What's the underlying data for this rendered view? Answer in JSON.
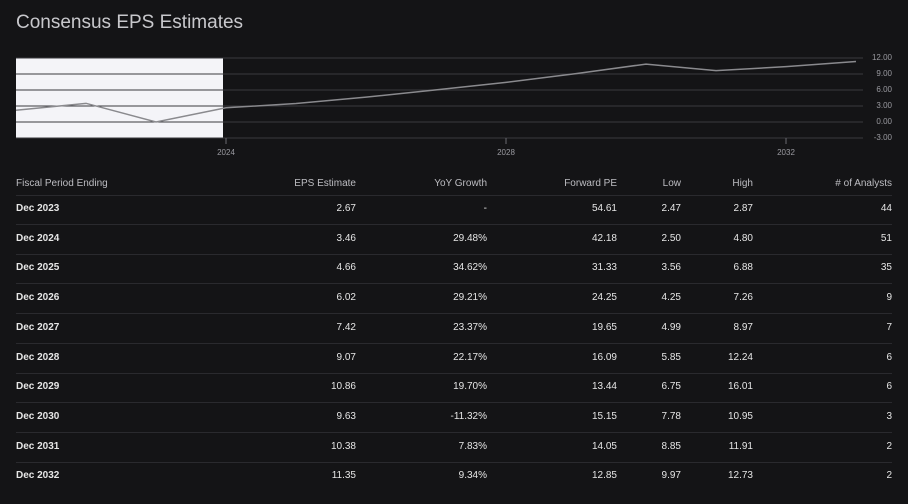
{
  "title": "Consensus EPS Estimates",
  "chart_data": {
    "type": "line",
    "x": [
      2021,
      2022,
      2023,
      2024,
      2025,
      2026,
      2027,
      2028,
      2029,
      2030,
      2031,
      2032,
      2033
    ],
    "values": [
      2.2,
      3.5,
      0.0,
      2.67,
      3.46,
      4.66,
      6.02,
      7.42,
      9.07,
      10.86,
      9.63,
      10.38,
      11.35
    ],
    "color": "#8a8a8e",
    "xlim": [
      2021,
      2033.1
    ],
    "xticks": [
      2024,
      2028,
      2032
    ],
    "ylim": [
      -3,
      12
    ],
    "yticks": [
      {
        "value": -3,
        "label": "-3.00"
      },
      {
        "value": 0,
        "label": "0.00"
      },
      {
        "value": 3,
        "label": "3.00"
      },
      {
        "value": 6,
        "label": "6.00"
      },
      {
        "value": 9,
        "label": "9.00"
      },
      {
        "value": 12,
        "label": "12.00"
      }
    ],
    "grid": true
  },
  "table": {
    "columns": [
      "Fiscal Period Ending",
      "EPS Estimate",
      "YoY Growth",
      "Forward PE",
      "Low",
      "High",
      "# of Analysts"
    ],
    "rows": [
      [
        "Dec 2023",
        "2.67",
        "-",
        "54.61",
        "2.47",
        "2.87",
        "44"
      ],
      [
        "Dec 2024",
        "3.46",
        "29.48%",
        "42.18",
        "2.50",
        "4.80",
        "51"
      ],
      [
        "Dec 2025",
        "4.66",
        "34.62%",
        "31.33",
        "3.56",
        "6.88",
        "35"
      ],
      [
        "Dec 2026",
        "6.02",
        "29.21%",
        "24.25",
        "4.25",
        "7.26",
        "9"
      ],
      [
        "Dec 2027",
        "7.42",
        "23.37%",
        "19.65",
        "4.99",
        "8.97",
        "7"
      ],
      [
        "Dec 2028",
        "9.07",
        "22.17%",
        "16.09",
        "5.85",
        "12.24",
        "6"
      ],
      [
        "Dec 2029",
        "10.86",
        "19.70%",
        "13.44",
        "6.75",
        "16.01",
        "6"
      ],
      [
        "Dec 2030",
        "9.63",
        "-11.32%",
        "15.15",
        "7.78",
        "10.95",
        "3"
      ],
      [
        "Dec 2031",
        "10.38",
        "7.83%",
        "14.05",
        "8.85",
        "11.91",
        "2"
      ],
      [
        "Dec 2032",
        "11.35",
        "9.34%",
        "12.85",
        "9.97",
        "12.73",
        "2"
      ]
    ]
  }
}
